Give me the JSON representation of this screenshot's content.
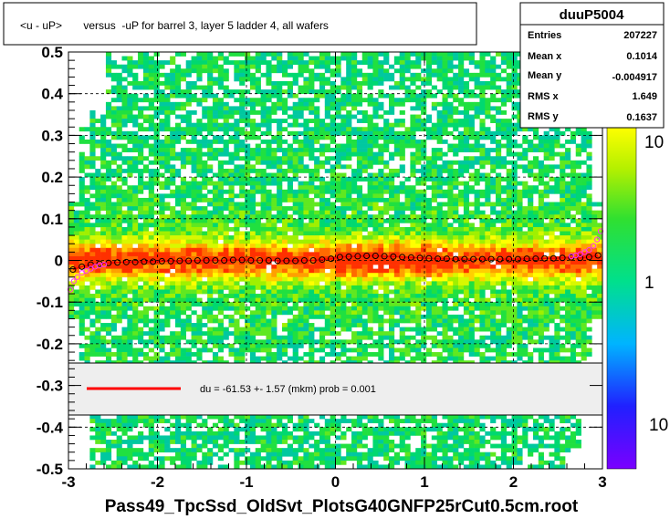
{
  "chart_data": {
    "type": "heatmap",
    "title": "<u - uP>       versus  -uP for barrel 3, layer 5 ladder 4, all wafers",
    "xlabel": "Pass49_TpcSsd_OldSvt_PlotsG40GNFP25rCut0.5cm.root",
    "ylabel": "",
    "xlim": [
      -3,
      3
    ],
    "ylim": [
      -0.5,
      0.5
    ],
    "x_ticks": [
      "-3",
      "-2",
      "-1",
      "0",
      "1",
      "2",
      "3"
    ],
    "y_ticks": [
      "-0.5",
      "-0.4",
      "-0.3",
      "-0.2",
      "-0.1",
      "0",
      "0.1",
      "0.2",
      "0.3",
      "0.4",
      "0.5"
    ],
    "grid": true,
    "z_scale": "log",
    "z_ticks": [
      "10",
      "1",
      "10"
    ],
    "stats": {
      "name": "duuP5004",
      "rows": [
        {
          "label": "Entries",
          "value": "207227"
        },
        {
          "label": "Mean x",
          "value": "0.1014"
        },
        {
          "label": "Mean y",
          "value": "-0.004917"
        },
        {
          "label": "RMS x",
          "value": "1.649"
        },
        {
          "label": "RMS y",
          "value": "0.1637"
        }
      ]
    },
    "fit_legend": {
      "text": "du =  -61.53 +-  1.57 (mkm) prob = 0.001",
      "color": "#ff0000"
    },
    "profile": {
      "x": [
        -2.95,
        -2.85,
        -2.75,
        -2.65,
        -2.55,
        -2.45,
        -2.35,
        -2.25,
        -2.15,
        -2.05,
        -1.95,
        -1.85,
        -1.75,
        -1.65,
        -1.55,
        -1.45,
        -1.35,
        -1.25,
        -1.15,
        -1.05,
        -0.95,
        -0.85,
        -0.75,
        -0.65,
        -0.55,
        -0.45,
        -0.35,
        -0.25,
        -0.15,
        -0.05,
        0.05,
        0.15,
        0.25,
        0.35,
        0.45,
        0.55,
        0.65,
        0.75,
        0.85,
        0.95,
        1.05,
        1.15,
        1.25,
        1.35,
        1.45,
        1.55,
        1.65,
        1.75,
        1.85,
        1.95,
        2.05,
        2.15,
        2.25,
        2.35,
        2.45,
        2.55,
        2.65,
        2.75,
        2.85,
        2.95
      ],
      "y": [
        -0.022,
        -0.015,
        -0.01,
        -0.008,
        -0.006,
        -0.005,
        -0.004,
        -0.004,
        -0.003,
        -0.003,
        -0.002,
        -0.002,
        -0.001,
        -0.001,
        0,
        0,
        0,
        0,
        0.001,
        0.001,
        0,
        0,
        0,
        -0.001,
        -0.001,
        -0.001,
        0,
        0,
        0.002,
        0.004,
        0.008,
        0.009,
        0.01,
        0.011,
        0.011,
        0.01,
        0.009,
        0.008,
        0.007,
        0.006,
        0.005,
        0.004,
        0.004,
        0.003,
        0.003,
        0.003,
        0.003,
        0.003,
        0.003,
        0.003,
        0.003,
        0.004,
        0.004,
        0.005,
        0.005,
        0.006,
        0.007,
        0.006,
        0.008,
        0.012
      ]
    },
    "envelope": {
      "x_left": [
        -2.98,
        -2.94,
        -2.9,
        -2.85,
        -2.8,
        -2.75,
        -2.7,
        -2.65,
        -2.6
      ],
      "y_left": [
        -0.07,
        -0.05,
        -0.04,
        -0.03,
        -0.025,
        -0.02,
        -0.015,
        -0.012,
        -0.01
      ],
      "x_right": [
        2.65,
        2.7,
        2.75,
        2.8,
        2.85,
        2.9,
        2.94,
        2.98
      ],
      "y_right": [
        0.01,
        0.012,
        0.015,
        0.02,
        0.025,
        0.035,
        0.05,
        0.07
      ]
    }
  }
}
